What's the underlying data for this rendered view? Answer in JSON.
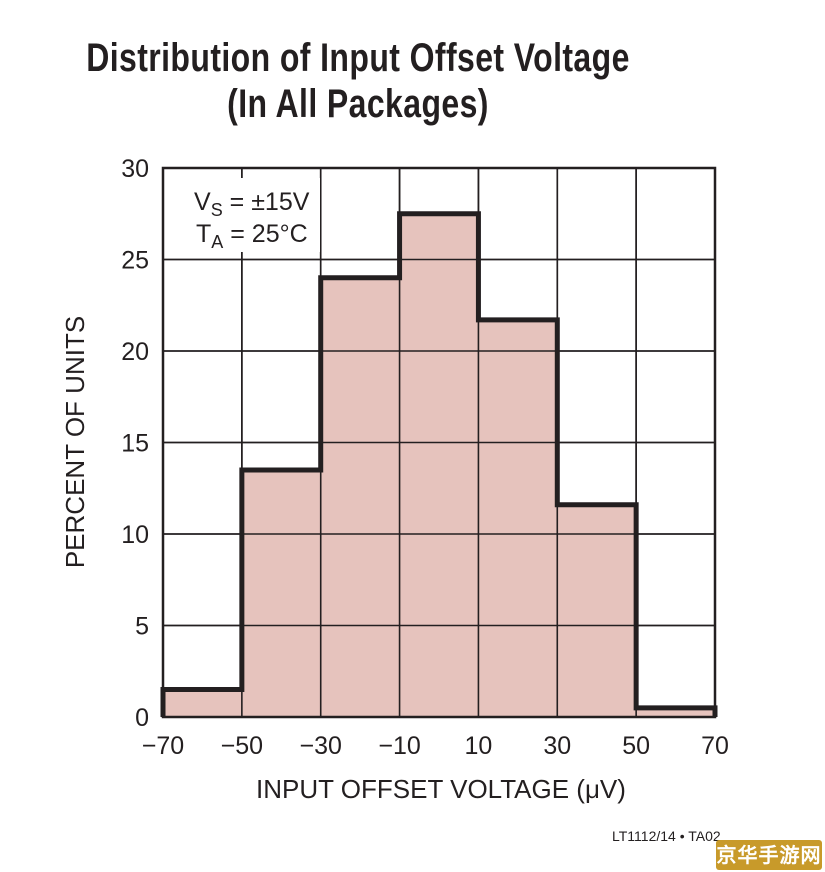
{
  "chart_data": {
    "type": "bar",
    "title": "Distribution of Input Offset Voltage",
    "subtitle": "(In All Packages)",
    "xlabel": "INPUT OFFSET VOLTAGE (μV)",
    "ylabel": "PERCENT OF UNITS",
    "bin_edges": [
      -70,
      -50,
      -30,
      -10,
      10,
      30,
      50,
      70
    ],
    "values": [
      1.5,
      13.5,
      24,
      27.5,
      21.7,
      11.6,
      0.5
    ],
    "xlim": [
      -70,
      70
    ],
    "ylim": [
      0,
      30
    ],
    "xticks": [
      "−70",
      "−50",
      "−30",
      "−10",
      "10",
      "30",
      "50",
      "70"
    ],
    "yticks": [
      "0",
      "5",
      "10",
      "15",
      "20",
      "25",
      "30"
    ],
    "grid": true,
    "fill_color": "#e6c3bd",
    "annotations": [
      {
        "label": "V",
        "sub": "S",
        "value": " = ±15V"
      },
      {
        "label": "T",
        "sub": "A",
        "value": " = 25°C"
      }
    ]
  },
  "figure_id": "LT1112/14 • TA02",
  "watermark": "京华手游网"
}
